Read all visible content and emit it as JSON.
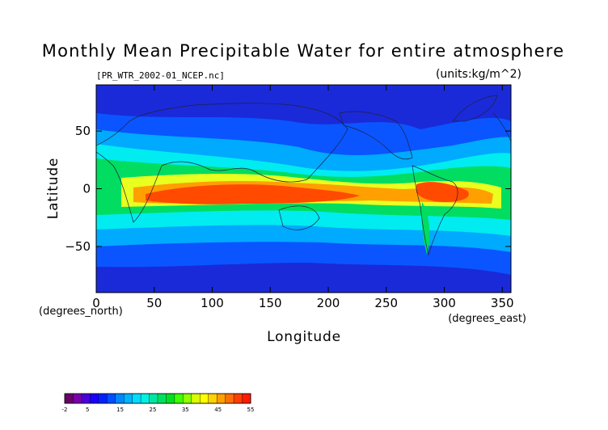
{
  "chart_data": {
    "type": "heatmap",
    "title": "Monthly Mean Precipitable Water for entire atmosphere",
    "subtitle": "[PR_WTR_2002-01_NCEP.nc]",
    "units": "(units:kg/m^2)",
    "xlabel": "Longitude",
    "ylabel": "Latitude",
    "x_units": "(degrees_east)",
    "y_units": "(degrees_north)",
    "xlim": [
      0,
      357.5
    ],
    "ylim": [
      -90,
      90
    ],
    "x_ticks": [
      0,
      50,
      100,
      150,
      200,
      250,
      300,
      350
    ],
    "y_ticks": [
      -50,
      0,
      50
    ],
    "colorbar": {
      "min": -2,
      "max": 55,
      "labels": [
        -2,
        5,
        15,
        25,
        35,
        45,
        55
      ],
      "colors": [
        "#6a006a",
        "#7a00aa",
        "#4b00d8",
        "#1a00ff",
        "#0022ff",
        "#0050ff",
        "#0088ff",
        "#00b4ff",
        "#00dcff",
        "#00f0e0",
        "#00e6a0",
        "#00e060",
        "#00e020",
        "#40ff00",
        "#90ff00",
        "#d8ff00",
        "#ffff00",
        "#ffd200",
        "#ffa000",
        "#ff7000",
        "#ff4000",
        "#ff1a00"
      ]
    }
  },
  "colors": {
    "polar": "#1a2ad8",
    "high_mid": "#0a55ff",
    "mid": "#00aaff",
    "cyan": "#00ecf0",
    "green": "#00dd60",
    "yellow": "#e8ff20",
    "orange": "#ffa000",
    "red": "#ff4a00",
    "coast": "#202040"
  }
}
